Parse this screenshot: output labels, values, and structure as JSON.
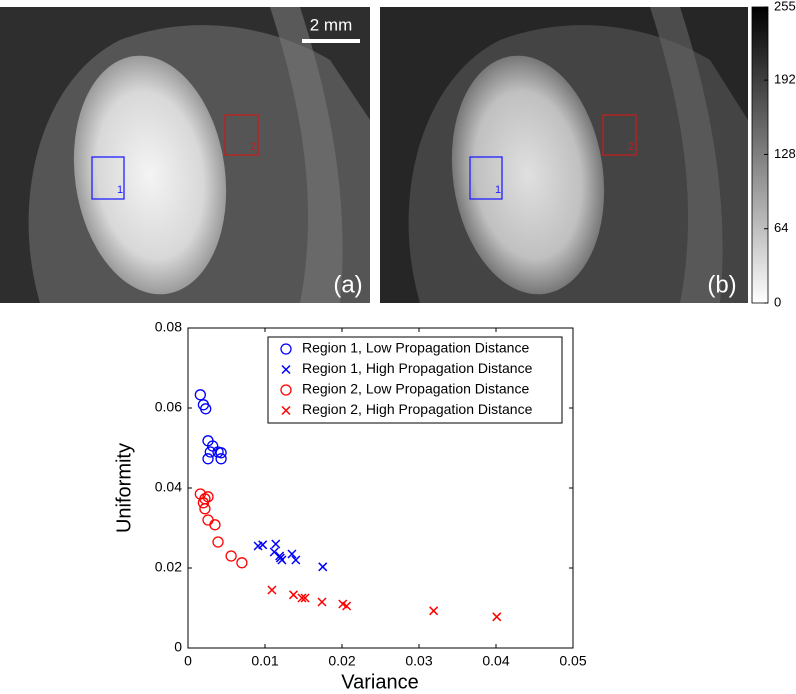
{
  "panels": [
    {
      "label": "(a)"
    },
    {
      "label": "(b)"
    }
  ],
  "scale_bar": "2 mm",
  "regions": [
    "1",
    "2"
  ],
  "colorbar": {
    "lim": [
      0,
      255
    ],
    "ticks": [
      0,
      64,
      128,
      192,
      255
    ]
  },
  "chart_data": {
    "type": "scatter",
    "x_label": "Variance",
    "y_label": "Uniformity",
    "xlim": [
      0,
      0.05
    ],
    "ylim": [
      0,
      0.08
    ],
    "xticks": [
      0,
      0.01,
      0.02,
      0.03,
      0.04,
      0.05
    ],
    "yticks": [
      0,
      0.02,
      0.04,
      0.06,
      0.08
    ],
    "legend": "upper right",
    "series": [
      {
        "name": "Region 1, Low Propagation Distance",
        "color": "#0000ff",
        "marker": "o",
        "x": [
          0.0016,
          0.002,
          0.0023,
          0.0026,
          0.0032,
          0.0029,
          0.0026,
          0.0039,
          0.0043,
          0.0043
        ],
        "values": [
          0.0633,
          0.0608,
          0.0598,
          0.0518,
          0.0505,
          0.049,
          0.0473,
          0.049,
          0.0473,
          0.0488
        ]
      },
      {
        "name": "Region 1, High Propagation Distance",
        "color": "#0000ff",
        "marker": "x",
        "x": [
          0.0091,
          0.0097,
          0.0114,
          0.0112,
          0.0119,
          0.0122,
          0.012,
          0.0135,
          0.014,
          0.0175
        ],
        "values": [
          0.0255,
          0.0258,
          0.026,
          0.024,
          0.023,
          0.022,
          0.0225,
          0.0235,
          0.022,
          0.0203
        ]
      },
      {
        "name": "Region 2, Low Propagation Distance",
        "color": "#ff0000",
        "marker": "o",
        "x": [
          0.0016,
          0.0022,
          0.0026,
          0.002,
          0.0022,
          0.0026,
          0.0035,
          0.0039,
          0.0056,
          0.007
        ],
        "values": [
          0.0385,
          0.0373,
          0.0378,
          0.0363,
          0.0348,
          0.032,
          0.0308,
          0.0265,
          0.023,
          0.0213
        ]
      },
      {
        "name": "Region 2, High Propagation Distance",
        "color": "#ff0000",
        "marker": "x",
        "x": [
          0.0109,
          0.0137,
          0.0148,
          0.0152,
          0.0174,
          0.0201,
          0.0206,
          0.0319,
          0.0401
        ],
        "values": [
          0.0145,
          0.0133,
          0.0125,
          0.0125,
          0.0115,
          0.011,
          0.0105,
          0.0093,
          0.0078
        ]
      }
    ]
  }
}
